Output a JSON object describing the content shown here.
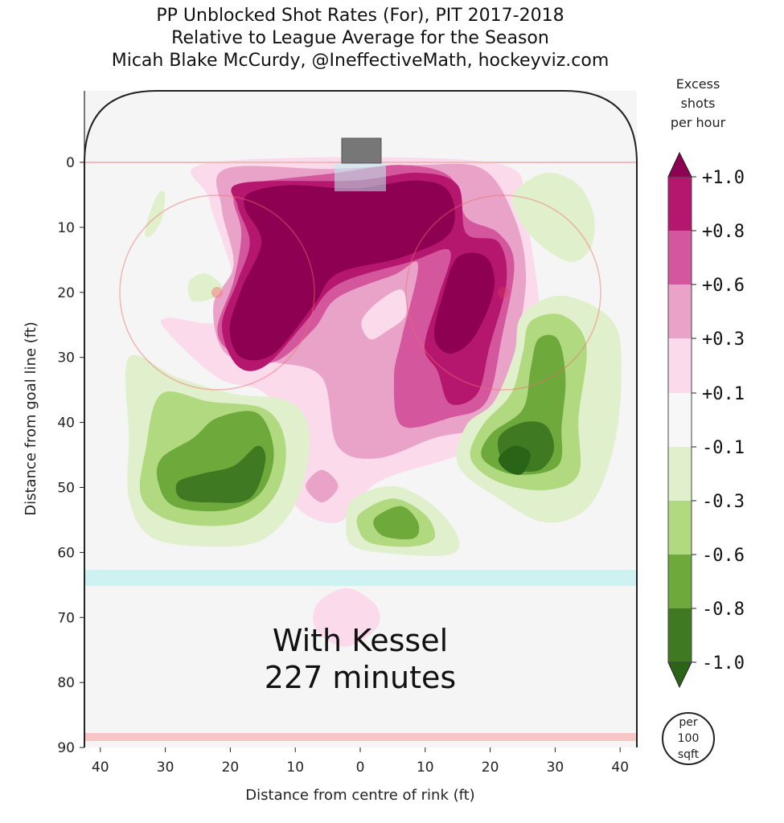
{
  "chart_data": {
    "type": "heatmap",
    "title": [
      "PP Unblocked Shot Rates (For), PIT 2017-2018",
      "Relative to League Average for the Season",
      "Micah Blake McCurdy, @IneffectiveMath, hockeyviz.com"
    ],
    "xlabel": "Distance from centre of rink (ft)",
    "ylabel": "Distance from goal line (ft)",
    "xlim": [
      -42.5,
      42.5
    ],
    "ylim": [
      -11,
      90
    ],
    "xticks": [
      -40,
      -30,
      -20,
      -10,
      0,
      10,
      20,
      30,
      40
    ],
    "xtick_labels": [
      "40",
      "30",
      "20",
      "10",
      "0",
      "10",
      "20",
      "30",
      "40"
    ],
    "yticks": [
      0,
      10,
      20,
      30,
      40,
      50,
      60,
      70,
      80,
      90
    ],
    "ytick_labels": [
      "0",
      "10",
      "20",
      "30",
      "40",
      "50",
      "60",
      "70",
      "80",
      "90"
    ],
    "annotation": [
      "With Kessel",
      "227 minutes"
    ],
    "colorbar": {
      "title": [
        "Excess",
        "shots",
        "per hour"
      ],
      "unit_badge": [
        "per",
        "100",
        "sqft"
      ],
      "tick_labels": [
        "+1.0",
        "+0.8",
        "+0.6",
        "+0.3",
        "+0.1",
        "-0.1",
        "-0.3",
        "-0.6",
        "-0.8",
        "-1.0"
      ],
      "colors": [
        "#8e0152",
        "#b5176f",
        "#d4579d",
        "#e9a3c9",
        "#fbdaec",
        "#f7f7f7",
        "#e0f0cc",
        "#b0d980",
        "#6ea93c",
        "#3f7a22",
        "#2a6517"
      ]
    },
    "level_colors": {
      "1.0": "#8e0152",
      "0.8": "#b5176f",
      "0.6": "#d4579d",
      "0.3": "#e9a3c9",
      "0.1": "#fbdaec",
      "0": "#f7f7f7",
      "-0.1": "#e0f0cc",
      "-0.3": "#b0d980",
      "-0.6": "#6ea93c",
      "-0.8": "#3f7a22",
      "-1.0": "#2a6517"
    },
    "regions": [
      {
        "level": "0.1",
        "points": [
          [
            -22.6,
            0
          ],
          [
            20,
            0
          ],
          [
            24.9,
            7.2
          ],
          [
            26.8,
            15.8
          ],
          [
            27.4,
            24.5
          ],
          [
            24.3,
            33.1
          ],
          [
            20.6,
            42.4
          ],
          [
            13.8,
            45.5
          ],
          [
            2.7,
            49.2
          ],
          [
            -3.5,
            55.4
          ],
          [
            -10.2,
            52.3
          ],
          [
            -8.4,
            44.3
          ],
          [
            -14.6,
            35.6
          ],
          [
            -22,
            33.1
          ],
          [
            -30,
            25.7
          ],
          [
            -29.4,
            23.9
          ],
          [
            -22,
            24.5
          ],
          [
            -19.5,
            18.3
          ],
          [
            -23.2,
            5.9
          ]
        ]
      },
      {
        "level": "0.3",
        "points": [
          [
            -20.7,
            1
          ],
          [
            -4.7,
            1
          ],
          [
            8.9,
            0.4
          ],
          [
            18.8,
            1
          ],
          [
            23.7,
            8.4
          ],
          [
            25.5,
            17.1
          ],
          [
            24.3,
            26.9
          ],
          [
            22.5,
            34.4
          ],
          [
            18.8,
            40.5
          ],
          [
            11.4,
            42.4
          ],
          [
            2.7,
            45.5
          ],
          [
            -3.5,
            43.6
          ],
          [
            -5.9,
            33.1
          ],
          [
            -13.3,
            30.7
          ],
          [
            -20.7,
            29.4
          ],
          [
            -22.6,
            22
          ],
          [
            -19.5,
            15.8
          ],
          [
            -21.3,
            7.2
          ]
        ]
      },
      {
        "level": "0.1",
        "points": [
          [
            0.2,
            24.5
          ],
          [
            2.7,
            21.5
          ],
          [
            6.4,
            19.6
          ],
          [
            7,
            23.5
          ],
          [
            4,
            26
          ],
          [
            1.5,
            27.2
          ]
        ]
      },
      {
        "level": "0.6",
        "points": [
          [
            -18.3,
            3.5
          ],
          [
            -3.5,
            1.6
          ],
          [
            6.4,
            0.4
          ],
          [
            13.8,
            2.2
          ],
          [
            16.3,
            8.4
          ],
          [
            21.3,
            10.9
          ],
          [
            23.7,
            15.8
          ],
          [
            21.8,
            26.9
          ],
          [
            19.4,
            36.8
          ],
          [
            13.8,
            39.3
          ],
          [
            6.4,
            40.5
          ],
          [
            5.2,
            33.1
          ],
          [
            6.4,
            26.9
          ],
          [
            8.9,
            15.8
          ],
          [
            5.2,
            17.3
          ],
          [
            -3.5,
            20.8
          ],
          [
            -7.2,
            25.7
          ],
          [
            -13.3,
            30.7
          ],
          [
            -19.5,
            29.4
          ],
          [
            -22,
            25.7
          ],
          [
            -19.5,
            18.3
          ],
          [
            -18.3,
            10.9
          ],
          [
            -19.5,
            5.9
          ]
        ]
      },
      {
        "level": "0.8",
        "points": [
          [
            -18.3,
            3.2
          ],
          [
            -1,
            2.8
          ],
          [
            8.9,
            1.6
          ],
          [
            15,
            3.5
          ],
          [
            16.3,
            10.9
          ],
          [
            21.3,
            12.3
          ],
          [
            22.5,
            18.5
          ],
          [
            19.9,
            28.4
          ],
          [
            18,
            35.6
          ],
          [
            13.8,
            37.1
          ],
          [
            11.9,
            32.1
          ],
          [
            9.9,
            28.4
          ],
          [
            12,
            20.8
          ],
          [
            13.8,
            13.6
          ],
          [
            7.7,
            15.3
          ],
          [
            -3.5,
            18.8
          ],
          [
            -8.4,
            24.5
          ],
          [
            -14.6,
            31.3
          ],
          [
            -18.9,
            31.3
          ],
          [
            -21.3,
            25.2
          ],
          [
            -18.9,
            18.3
          ],
          [
            -17,
            12.3
          ],
          [
            -18.9,
            6.6
          ]
        ]
      },
      {
        "level": "1.0",
        "points": [
          [
            -17,
            4.7
          ],
          [
            -10.9,
            3.5
          ],
          [
            -1,
            4
          ],
          [
            8.9,
            2.8
          ],
          [
            13.8,
            4.7
          ],
          [
            13.8,
            10.9
          ],
          [
            6.4,
            14.6
          ],
          [
            -3.5,
            17.1
          ],
          [
            -7.2,
            22
          ],
          [
            -13.3,
            29.4
          ],
          [
            -18.3,
            30
          ],
          [
            -20.1,
            25.7
          ],
          [
            -18.3,
            19.5
          ],
          [
            -15.2,
            12.3
          ],
          [
            -17.7,
            7.2
          ]
        ]
      },
      {
        "level": "1.0",
        "points": [
          [
            15,
            14.6
          ],
          [
            19.4,
            14.6
          ],
          [
            20.6,
            19.5
          ],
          [
            17.5,
            26.9
          ],
          [
            13.8,
            29.4
          ],
          [
            11.4,
            26.9
          ],
          [
            12.6,
            20.8
          ]
        ]
      },
      {
        "level": "0.3",
        "points": [
          [
            -5.9,
            47.3
          ],
          [
            -3.4,
            49.8
          ],
          [
            -5.9,
            52.3
          ],
          [
            -8.4,
            49.8
          ]
        ]
      },
      {
        "level": "0.1",
        "points": [
          [
            -2.2,
            65.5
          ],
          [
            2.3,
            68
          ],
          [
            2.6,
            71.5
          ],
          [
            -2.2,
            74.5
          ],
          [
            -6.7,
            72
          ],
          [
            -6.7,
            68
          ]
        ]
      },
      {
        "level": "0.1",
        "points": [
          [
            38,
            35.8
          ],
          [
            39,
            36.8
          ],
          [
            38,
            37.8
          ],
          [
            37,
            36.8
          ]
        ]
      },
      {
        "level": "-0.1",
        "points": [
          [
            -35.6,
            30
          ],
          [
            -28.1,
            33.1
          ],
          [
            -19.5,
            35.6
          ],
          [
            -10.9,
            36.8
          ],
          [
            -7.8,
            41.8
          ],
          [
            -9.6,
            51.7
          ],
          [
            -14.6,
            57.8
          ],
          [
            -22,
            59.1
          ],
          [
            -31.9,
            57.8
          ],
          [
            -35.6,
            51.7
          ],
          [
            -35.6,
            42.4
          ]
        ]
      },
      {
        "level": "-0.3",
        "points": [
          [
            -30.6,
            35.6
          ],
          [
            -23.2,
            36.8
          ],
          [
            -14.6,
            38
          ],
          [
            -11.5,
            43.3
          ],
          [
            -12.8,
            50.7
          ],
          [
            -18.3,
            55.4
          ],
          [
            -28.1,
            55.4
          ],
          [
            -33.6,
            51.7
          ],
          [
            -33,
            44
          ]
        ]
      },
      {
        "level": "-0.6",
        "points": [
          [
            -30.6,
            45.5
          ],
          [
            -25.7,
            42.4
          ],
          [
            -22,
            39.3
          ],
          [
            -15.8,
            38.6
          ],
          [
            -13.3,
            44.5
          ],
          [
            -15.2,
            50.7
          ],
          [
            -20.7,
            53.5
          ],
          [
            -28.6,
            52.9
          ],
          [
            -31.1,
            49.2
          ]
        ]
      },
      {
        "level": "-0.8",
        "points": [
          [
            -28.1,
            49.2
          ],
          [
            -24.4,
            47.9
          ],
          [
            -19.5,
            46.7
          ],
          [
            -15.8,
            43.6
          ],
          [
            -14.6,
            46
          ],
          [
            -17,
            51.7
          ],
          [
            -23.2,
            52.3
          ],
          [
            -27.6,
            51.7
          ]
        ]
      },
      {
        "level": "-0.1",
        "points": [
          [
            24.9,
            23.5
          ],
          [
            31.1,
            20.5
          ],
          [
            38.9,
            24.5
          ],
          [
            40.2,
            33.1
          ],
          [
            38.9,
            44.3
          ],
          [
            35.2,
            52.9
          ],
          [
            28.6,
            55.4
          ],
          [
            21.3,
            51.7
          ],
          [
            15.1,
            46.7
          ],
          [
            16.3,
            40.5
          ],
          [
            20.6,
            36.8
          ],
          [
            23.7,
            29.4
          ]
        ]
      },
      {
        "level": "-0.3",
        "points": [
          [
            26.2,
            24.5
          ],
          [
            31.1,
            23.5
          ],
          [
            34.8,
            28.1
          ],
          [
            33.6,
            39.3
          ],
          [
            33.6,
            47.9
          ],
          [
            28.6,
            50.4
          ],
          [
            21.3,
            49.2
          ],
          [
            17,
            45.5
          ],
          [
            18.8,
            40.5
          ],
          [
            23.2,
            35.6
          ],
          [
            25,
            29.4
          ]
        ]
      },
      {
        "level": "-0.6",
        "points": [
          [
            27.4,
            27.2
          ],
          [
            30.4,
            27.2
          ],
          [
            31.6,
            33.1
          ],
          [
            31,
            40.5
          ],
          [
            30.4,
            46.7
          ],
          [
            23.7,
            48
          ],
          [
            18.8,
            45.5
          ],
          [
            20.1,
            41.8
          ],
          [
            25,
            38
          ],
          [
            26.2,
            31.9
          ]
        ]
      },
      {
        "level": "-0.8",
        "points": [
          [
            21.3,
            42.4
          ],
          [
            25,
            40
          ],
          [
            28.6,
            40.5
          ],
          [
            29.8,
            44.3
          ],
          [
            27.4,
            47.4
          ],
          [
            22.5,
            46.7
          ]
        ]
      },
      {
        "level": "-1.0",
        "points": [
          [
            21.3,
            45.5
          ],
          [
            23.7,
            43.6
          ],
          [
            26.2,
            44.8
          ],
          [
            24.9,
            47.9
          ],
          [
            22.5,
            47.4
          ]
        ]
      },
      {
        "level": "-0.1",
        "points": [
          [
            -1,
            51.7
          ],
          [
            5.2,
            49.8
          ],
          [
            11.4,
            52.9
          ],
          [
            15.1,
            57.8
          ],
          [
            13.8,
            60.3
          ],
          [
            6.4,
            60.3
          ],
          [
            -1,
            59.1
          ],
          [
            -2.2,
            55.4
          ]
        ]
      },
      {
        "level": "-0.3",
        "points": [
          [
            0.2,
            53.8
          ],
          [
            5.2,
            51.7
          ],
          [
            10.1,
            54.3
          ],
          [
            11.4,
            57.8
          ],
          [
            7.7,
            59.1
          ],
          [
            1.5,
            58.5
          ],
          [
            -0.4,
            56
          ]
        ]
      },
      {
        "level": "-0.6",
        "points": [
          [
            2.7,
            54.3
          ],
          [
            6.4,
            52.9
          ],
          [
            8.9,
            55.4
          ],
          [
            8.3,
            57.8
          ],
          [
            3.9,
            57.6
          ],
          [
            2.1,
            55.9
          ]
        ]
      },
      {
        "level": "-0.1",
        "points": [
          [
            23.7,
            4.7
          ],
          [
            28.6,
            1.6
          ],
          [
            33.6,
            3.5
          ],
          [
            36,
            8.4
          ],
          [
            35.4,
            13.3
          ],
          [
            32.3,
            15.3
          ],
          [
            27.4,
            12.4
          ],
          [
            24.3,
            8.4
          ]
        ]
      },
      {
        "level": "-0.1",
        "points": [
          [
            -31.4,
            5.3
          ],
          [
            -30.1,
            4.7
          ],
          [
            -30.6,
            9
          ],
          [
            -32.5,
            11.5
          ],
          [
            -33.1,
            10.3
          ]
        ]
      },
      {
        "level": "-0.1",
        "points": [
          [
            -26.3,
            18.3
          ],
          [
            -23.8,
            17.1
          ],
          [
            -21.3,
            19
          ],
          [
            -22.5,
            20.8
          ],
          [
            -25.9,
            21.3
          ]
        ]
      }
    ]
  }
}
